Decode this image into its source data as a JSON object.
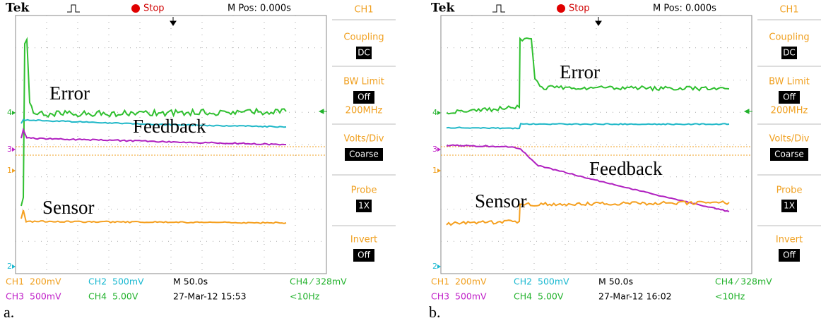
{
  "panels": [
    {
      "caption": "a.",
      "header": {
        "brand": "Tek",
        "status": "Stop",
        "mpos": "M Pos: 0.000s"
      },
      "menu": {
        "title": "CH1",
        "items": [
          {
            "label": "Coupling",
            "value": "DC"
          },
          {
            "label": "BW Limit",
            "value": "Off",
            "extra": "200MHz"
          },
          {
            "label": "Volts/Div",
            "value": "Coarse"
          },
          {
            "label": "Probe",
            "value": "1X"
          },
          {
            "label": "Invert",
            "value": "Off"
          }
        ]
      },
      "markers": [
        {
          "text": "4",
          "color": "#22b22c"
        },
        {
          "text": "3",
          "color": "#c020c8"
        },
        {
          "text": "1",
          "color": "#f0a020"
        },
        {
          "text": "2",
          "color": "#18b8d0"
        }
      ],
      "traces": [
        {
          "name": "Error",
          "color": "#30c030"
        },
        {
          "name": "Feedback",
          "color": "#b020c0"
        },
        {
          "name": "Sensor",
          "color": "#f5a020"
        },
        {
          "color": "#20b8c8"
        }
      ],
      "footer": [
        [
          {
            "text": "CH1  200mV",
            "color": "#f0a020"
          },
          {
            "text": "CH2  500mV",
            "color": "#18b8d0"
          },
          {
            "text": "M 50.0s",
            "color": "#000000"
          },
          {
            "text": "CH4 ⁄ 328mV",
            "color": "#22b22c"
          }
        ],
        [
          {
            "text": "CH3  500mV",
            "color": "#c020c8"
          },
          {
            "text": "CH4  5.00V",
            "color": "#22b22c"
          },
          {
            "text": "27-Mar-12 15:53",
            "color": "#000000"
          },
          {
            "text": "<10Hz",
            "color": "#22b22c"
          }
        ]
      ]
    },
    {
      "caption": "b.",
      "header": {
        "brand": "Tek",
        "status": "Stop",
        "mpos": "M Pos: 0.000s"
      },
      "menu": {
        "title": "CH1",
        "items": [
          {
            "label": "Coupling",
            "value": "DC"
          },
          {
            "label": "BW Limit",
            "value": "Off",
            "extra": "200MHz"
          },
          {
            "label": "Volts/Div",
            "value": "Coarse"
          },
          {
            "label": "Probe",
            "value": "1X"
          },
          {
            "label": "Invert",
            "value": "Off"
          }
        ]
      },
      "markers": [
        {
          "text": "4",
          "color": "#22b22c"
        },
        {
          "text": "3",
          "color": "#c020c8"
        },
        {
          "text": "1",
          "color": "#f0a020"
        },
        {
          "text": "2",
          "color": "#18b8d0"
        }
      ],
      "traces": [
        {
          "name": "Error",
          "color": "#30c030"
        },
        {
          "name": "Feedback",
          "color": "#b020c0"
        },
        {
          "name": "Sensor",
          "color": "#f5a020"
        },
        {
          "color": "#20b8c8"
        }
      ],
      "footer": [
        [
          {
            "text": "CH1  200mV",
            "color": "#f0a020"
          },
          {
            "text": "CH2  500mV",
            "color": "#18b8d0"
          },
          {
            "text": "M 50.0s",
            "color": "#000000"
          },
          {
            "text": "CH4 ⁄ 328mV",
            "color": "#22b22c"
          }
        ],
        [
          {
            "text": "CH3  500mV",
            "color": "#c020c8"
          },
          {
            "text": "CH4  5.00V",
            "color": "#22b22c"
          },
          {
            "text": "27-Mar-12 16:02",
            "color": "#000000"
          },
          {
            "text": "<10Hz",
            "color": "#22b22c"
          }
        ]
      ]
    }
  ]
}
